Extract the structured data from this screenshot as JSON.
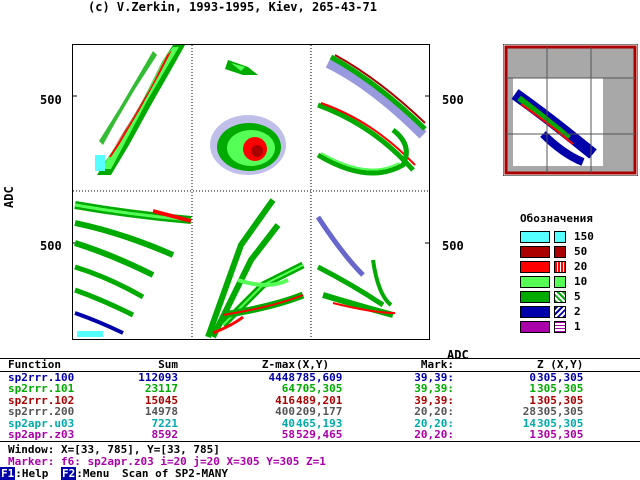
{
  "copyright": "(c) V.Zerkin, 1993-1995, Kiev, 265-43-71",
  "axes": {
    "ylabel": "ADC",
    "xlabel": "ADC",
    "tick_500": "500"
  },
  "legend": {
    "title": "Обозначения",
    "items": [
      {
        "label": "150",
        "color": "#55ffff"
      },
      {
        "label": "50",
        "color": "#aa0000"
      },
      {
        "label": "20",
        "color": "#ff0000"
      },
      {
        "label": "10",
        "color": "#55ff55"
      },
      {
        "label": "5",
        "color": "#00aa00"
      },
      {
        "label": "2",
        "color": "#0000aa"
      },
      {
        "label": "1",
        "color": "#aa00aa"
      }
    ]
  },
  "table": {
    "headers": {
      "function": "Function",
      "sum": "Sum",
      "zmax": "Z-max",
      "xy": "(X,Y)",
      "mark": "Mark:",
      "z_xy": "Z (X,Y)"
    },
    "rows": [
      {
        "function": "sp2rrr.100",
        "sum": "112093",
        "zmax": "4448",
        "xy": "785,609",
        "mark": "39,39:",
        "z": "0",
        "zxy": "305,305",
        "color": "#0000aa"
      },
      {
        "function": "sp2rrr.101",
        "sum": "23117",
        "zmax": "64",
        "xy": "705,305",
        "mark": "39,39:",
        "z": "1",
        "zxy": "305,305",
        "color": "#00aa00"
      },
      {
        "function": "sp2rrr.102",
        "sum": "15045",
        "zmax": "416",
        "xy": "489,201",
        "mark": "39,39:",
        "z": "1",
        "zxy": "305,305",
        "color": "#aa0000"
      },
      {
        "function": "sp2rrr.200",
        "sum": "14978",
        "zmax": "400",
        "xy": "209,177",
        "mark": "20,20:",
        "z": "28",
        "zxy": "305,305",
        "color": "#555555"
      },
      {
        "function": "sp2apr.u03",
        "sum": "7221",
        "zmax": "40",
        "xy": "465,193",
        "mark": "20,20:",
        "z": "14",
        "zxy": "305,305",
        "color": "#00aaaa"
      },
      {
        "function": "sp2apr.z03",
        "sum": "8592",
        "zmax": "58",
        "xy": "529,465",
        "mark": "20,20:",
        "z": "1",
        "zxy": "305,305",
        "color": "#aa00aa"
      }
    ]
  },
  "status": {
    "window": "Window: X=[33, 785], Y=[33, 785]",
    "marker": "Marker: f6: sp2apr.z03 i=20 j=20 X=305 Y=305 Z=1",
    "marker_color": "#aa00aa"
  },
  "fkeys": {
    "f1_key": "F1",
    "f1_label": ":Help",
    "f2_key": "F2",
    "f2_label": ":Menu",
    "scan_text": "Scan of SP2-MANY"
  }
}
